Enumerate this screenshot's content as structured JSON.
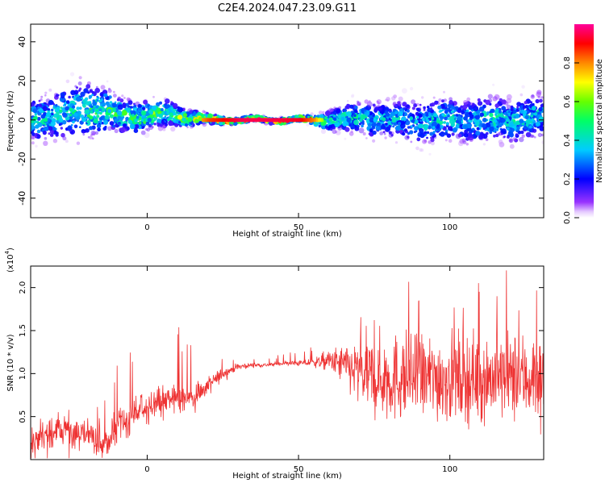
{
  "title": "C2E4.2024.047.23.09.G11",
  "chart_data": [
    {
      "type": "heatmap",
      "xlabel": "Height of straight line (km)",
      "ylabel": "Frequency (Hz)",
      "xlim": [
        -38.5,
        131
      ],
      "ylim": [
        -50,
        49
      ],
      "xticks": [
        0,
        50,
        100
      ],
      "yticks": [
        -40,
        -20,
        0,
        20,
        40
      ],
      "colorbar": {
        "label": "Normalized spectral amplitude",
        "range": [
          0,
          1
        ],
        "ticks": [
          "0.0",
          "0.2",
          "0.4",
          "0.6",
          "0.8"
        ],
        "tick_values": [
          0,
          0.2,
          0.4,
          0.6,
          0.8
        ]
      },
      "signal_trace": {
        "x": [
          -38,
          -30,
          -22,
          -15,
          -8,
          0,
          8,
          15,
          20,
          30,
          40,
          50,
          55,
          60,
          70,
          80,
          90,
          100,
          110,
          120,
          130
        ],
        "center_freq": [
          1,
          2,
          6,
          5,
          2,
          2,
          3,
          1,
          0,
          0,
          0,
          0,
          0,
          0,
          1,
          0,
          -1,
          0,
          0,
          0,
          2
        ],
        "spread_hz": [
          9,
          10,
          12,
          10,
          7,
          6,
          5,
          3,
          2,
          1,
          1,
          1,
          2,
          4,
          7,
          8,
          9,
          9,
          9,
          9,
          9
        ],
        "peak_amplitude": [
          0.45,
          0.45,
          0.5,
          0.55,
          0.55,
          0.6,
          0.65,
          0.7,
          0.85,
          0.95,
          0.95,
          0.92,
          0.8,
          0.5,
          0.45,
          0.4,
          0.4,
          0.45,
          0.45,
          0.45,
          0.45
        ]
      }
    },
    {
      "type": "line",
      "xlabel": "Height of straight line (km)",
      "ylabel": "SNR (10 * v/v)",
      "scale_label": "(x10",
      "scale_exponent": "4",
      "xlim": [
        -38.5,
        131
      ],
      "ylim": [
        0,
        22500
      ],
      "xticks": [
        0,
        50,
        100
      ],
      "yticks": [
        5000,
        10000,
        15000,
        20000
      ],
      "ytick_labels": [
        "0.5",
        "1.0",
        "1.5",
        "2.0"
      ],
      "color": "#EE3333",
      "series": [
        {
          "x": [
            -38,
            -35,
            -30,
            -25,
            -20,
            -15,
            -10,
            -5,
            0,
            5,
            10,
            15,
            20,
            25,
            30,
            35,
            40,
            45,
            50,
            55,
            60,
            65,
            70,
            75,
            80,
            85,
            90,
            95,
            100,
            105,
            110,
            115,
            120,
            125,
            130
          ],
          "mean": [
            2000,
            2500,
            3000,
            3200,
            3000,
            1500,
            3500,
            5000,
            6200,
            6800,
            7000,
            7200,
            8500,
            10000,
            10800,
            11000,
            11000,
            11200,
            11200,
            11300,
            11500,
            11000,
            10000,
            9500,
            9500,
            9500,
            9500,
            9500,
            9500,
            9500,
            9500,
            9500,
            9500,
            9500,
            9500
          ],
          "amplitude": [
            2500,
            2500,
            3000,
            3000,
            2500,
            2000,
            2500,
            2500,
            2500,
            2500,
            2500,
            2500,
            1500,
            900,
            500,
            300,
            300,
            300,
            400,
            700,
            1500,
            3000,
            5000,
            6000,
            6500,
            6500,
            6500,
            6500,
            6500,
            6500,
            6500,
            6500,
            6500,
            6500,
            6500
          ],
          "peak_max": [
            7000,
            9000,
            13500,
            10000,
            9000,
            6000,
            11000,
            13000,
            12500,
            15000,
            15500,
            16000,
            12500,
            12500,
            12000,
            11800,
            11800,
            12500,
            12500,
            13500,
            14500,
            16000,
            18000,
            20000,
            21500,
            22500,
            22000,
            21500,
            22000,
            21500,
            22000,
            21500,
            22500,
            22000,
            21500
          ]
        }
      ]
    }
  ]
}
